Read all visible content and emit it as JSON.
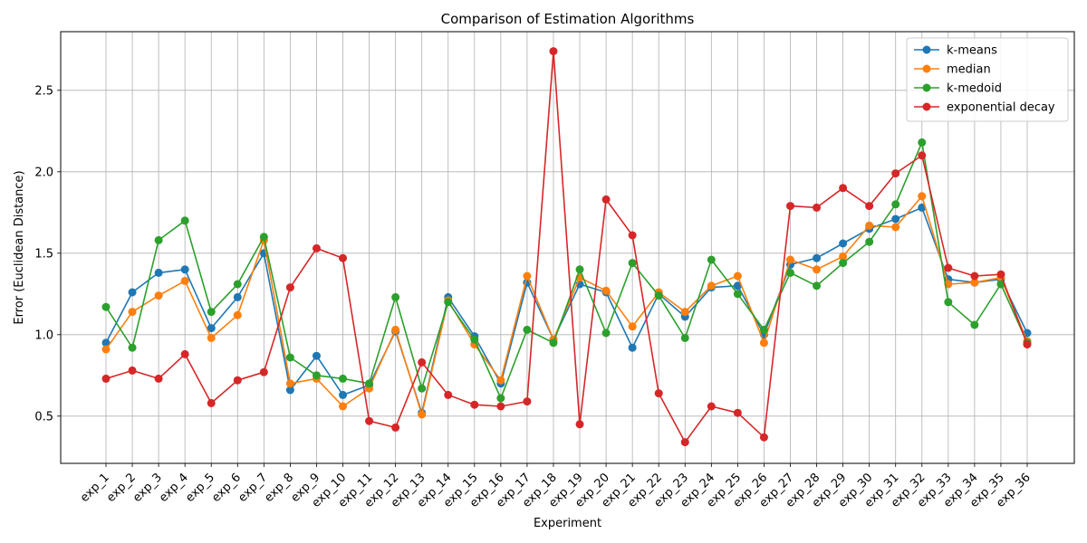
{
  "chart_data": {
    "type": "line",
    "title": "Comparison of Estimation Algorithms",
    "xlabel": "Experiment",
    "ylabel": "Error (Euclidean Distance)",
    "ylim": [
      0.21,
      2.86
    ],
    "yticks": [
      0.5,
      1.0,
      1.5,
      2.0,
      2.5
    ],
    "ytick_labels": [
      "0.5",
      "1.0",
      "1.5",
      "2.0",
      "2.5"
    ],
    "grid": true,
    "legend_position": "top-right",
    "categories": [
      "exp_1",
      "exp_2",
      "exp_3",
      "exp_4",
      "exp_5",
      "exp_6",
      "exp_7",
      "exp_8",
      "exp_9",
      "exp_10",
      "exp_11",
      "exp_12",
      "exp_13",
      "exp_14",
      "exp_15",
      "exp_16",
      "exp_17",
      "exp_18",
      "exp_19",
      "exp_20",
      "exp_21",
      "exp_22",
      "exp_23",
      "exp_24",
      "exp_25",
      "exp_26",
      "exp_27",
      "exp_28",
      "exp_29",
      "exp_30",
      "exp_31",
      "exp_32",
      "exp_33",
      "exp_34",
      "exp_35",
      "exp_36"
    ],
    "series": [
      {
        "name": "k-means",
        "color": "#1f77b4",
        "values": [
          0.95,
          1.26,
          1.38,
          1.4,
          1.04,
          1.23,
          1.5,
          0.66,
          0.87,
          0.63,
          0.69,
          1.02,
          0.52,
          1.23,
          0.99,
          0.7,
          1.32,
          0.97,
          1.31,
          1.26,
          0.92,
          1.25,
          1.11,
          1.29,
          1.3,
          1.0,
          1.43,
          1.47,
          1.56,
          1.65,
          1.71,
          1.78,
          1.34,
          1.32,
          1.34,
          1.01
        ]
      },
      {
        "name": "median",
        "color": "#ff7f0e",
        "values": [
          0.91,
          1.14,
          1.24,
          1.33,
          0.98,
          1.12,
          1.58,
          0.7,
          0.73,
          0.56,
          0.67,
          1.03,
          0.51,
          1.21,
          0.94,
          0.72,
          1.36,
          0.97,
          1.35,
          1.27,
          1.05,
          1.26,
          1.14,
          1.3,
          1.36,
          0.95,
          1.46,
          1.4,
          1.48,
          1.67,
          1.66,
          1.85,
          1.31,
          1.32,
          1.35,
          0.96
        ]
      },
      {
        "name": "k-medoid",
        "color": "#2ca02c",
        "values": [
          1.17,
          0.92,
          1.58,
          1.7,
          1.14,
          1.31,
          1.6,
          0.86,
          0.75,
          0.73,
          0.7,
          1.23,
          0.67,
          1.2,
          0.97,
          0.61,
          1.03,
          0.95,
          1.4,
          1.01,
          1.44,
          1.24,
          0.98,
          1.46,
          1.25,
          1.03,
          1.38,
          1.3,
          1.44,
          1.57,
          1.8,
          2.18,
          1.2,
          1.06,
          1.31,
          0.95
        ]
      },
      {
        "name": "exponential decay",
        "color": "#d62728",
        "values": [
          0.73,
          0.78,
          0.73,
          0.88,
          0.58,
          0.72,
          0.77,
          1.29,
          1.53,
          1.47,
          0.47,
          0.43,
          0.83,
          0.63,
          0.57,
          0.56,
          0.59,
          2.74,
          0.45,
          1.83,
          1.61,
          0.64,
          0.34,
          0.56,
          0.52,
          0.37,
          1.79,
          1.78,
          1.9,
          1.79,
          1.99,
          2.1,
          1.41,
          1.36,
          1.37,
          0.94
        ]
      }
    ]
  }
}
